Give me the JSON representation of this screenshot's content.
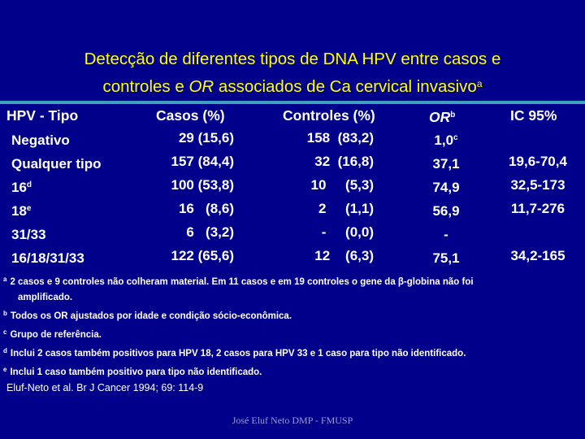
{
  "title": {
    "line1": "Detecção de diferentes tipos de  DNA HPV entre casos e",
    "line2_pre": "controles  e ",
    "line2_or": "OR",
    "line2_post": " associados de Ca cervical invasivo",
    "line2_sup": "a"
  },
  "colors": {
    "background": "#00008b",
    "title": "#ffff00",
    "rule": "#3f9fbf",
    "text": "#ffffff",
    "footer": "#9a9ad8"
  },
  "table": {
    "headers": {
      "tipo": "HPV - Tipo",
      "casos": "Casos (%)",
      "controles": "Controles (%)",
      "or": "OR",
      "or_sup": "b",
      "ic": "IC 95%"
    },
    "rows": [
      {
        "tipo": "Negativo",
        "tipo_sup": "",
        "casos": "29 (15,6)",
        "controles": "158  (83,2)",
        "or": "1,0",
        "or_sup": "c",
        "ic": ""
      },
      {
        "tipo": "Qualquer tipo",
        "tipo_sup": "",
        "casos": "157 (84,4)",
        "controles": "32  (16,8)",
        "or": "37,1",
        "or_sup": "",
        "ic": "19,6-70,4"
      },
      {
        "tipo": "16",
        "tipo_sup": "d",
        "casos": "100 (53,8)",
        "controles": "10     (5,3)",
        "or": "74,9",
        "or_sup": "",
        "ic": "32,5-173"
      },
      {
        "tipo": "18",
        "tipo_sup": "e",
        "casos": "16   (8,6)",
        "controles": "2     (1,1)",
        "or": "56,9",
        "or_sup": "",
        "ic": "11,7-276"
      },
      {
        "tipo": "31/33",
        "tipo_sup": "",
        "casos": "6   (3,2)",
        "controles": "-     (0,0)",
        "or": "-",
        "or_sup": "",
        "ic": ""
      },
      {
        "tipo": "16/18/31/33",
        "tipo_sup": "",
        "casos": "122 (65,6)",
        "controles": "12    (6,3)",
        "or": "75,1",
        "or_sup": "",
        "ic": "34,2-165"
      }
    ]
  },
  "notes": [
    {
      "mark": "a",
      "text": "2 casos e 9 controles não colheram material. Em 11 casos e em 19 controles o gene da β-globina  não foi"
    },
    {
      "mark": "",
      "text": "amplificado."
    },
    {
      "mark": "b",
      "text": "Todos os OR ajustados por idade e condição sócio-econômica."
    },
    {
      "mark": "c",
      "text": "Grupo de referência."
    },
    {
      "mark": "d",
      "text": "Inclui 2 casos também positivos para HPV 18, 2 casos para HPV 33 e 1 caso para tipo não identificado."
    },
    {
      "mark": "e",
      "text": "Inclui 1 caso também positivo para tipo não identificado."
    }
  ],
  "citation": "Eluf-Neto et al. Br J Cancer 1994; 69: 114-9",
  "footer": "José Eluf Neto   DMP - FMUSP"
}
